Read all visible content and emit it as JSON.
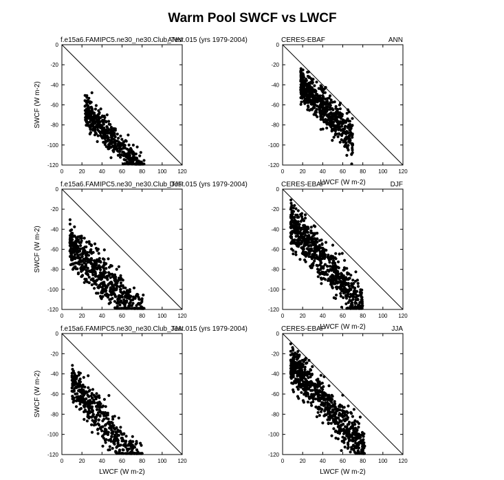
{
  "figure": {
    "title": "Warm Pool SWCF vs LWCF"
  },
  "chart_data": [
    {
      "type": "scatter",
      "panel": 1,
      "title_left": "f.e15a6.FAMIPC5.ne30_ne30.Club_Test.015 (yrs 1979-2004)",
      "title_right": "ANN",
      "xlabel": "",
      "ylabel": "SWCF (W m-2)",
      "xlim": [
        0,
        120
      ],
      "ylim": [
        -120,
        0
      ],
      "xticks": [
        "0",
        "20",
        "40",
        "60",
        "80",
        "100",
        "120"
      ],
      "yticks": [
        "0",
        "-20",
        "-40",
        "-60",
        "-80",
        "-100",
        "-120"
      ],
      "reference_line": [
        [
          0,
          0
        ],
        [
          120,
          -120
        ]
      ],
      "cloud": {
        "seed": 11,
        "n": 480,
        "x": [
          23,
          82
        ],
        "a": -32,
        "b": -1.07,
        "band": 16,
        "spread": 6
      }
    },
    {
      "type": "scatter",
      "panel": 2,
      "title_left": "CERES-EBAF",
      "title_right": "ANN",
      "xlabel": "LWCF (W m-2)",
      "ylabel": "",
      "xlim": [
        0,
        120
      ],
      "ylim": [
        -120,
        0
      ],
      "xticks": [
        "0",
        "20",
        "40",
        "60",
        "80",
        "100",
        "120"
      ],
      "yticks": [
        "0",
        "-20",
        "-40",
        "-60",
        "-80",
        "-100",
        "-120"
      ],
      "reference_line": [
        [
          0,
          0
        ],
        [
          120,
          -120
        ]
      ],
      "cloud": {
        "seed": 23,
        "n": 600,
        "x": [
          18,
          70
        ],
        "a": -12,
        "b": -1.07,
        "band": 14,
        "spread": 8
      }
    },
    {
      "type": "scatter",
      "panel": 3,
      "title_left": "f.e15a6.FAMIPC5.ne30_ne30.Club_Test.015 (yrs 1979-2004)",
      "title_right": "DJF",
      "xlabel": "",
      "ylabel": "SWCF (W m-2)",
      "xlim": [
        0,
        120
      ],
      "ylim": [
        -120,
        0
      ],
      "xticks": [
        "0",
        "20",
        "40",
        "60",
        "80",
        "100",
        "120"
      ],
      "yticks": [
        "0",
        "-20",
        "-40",
        "-60",
        "-80",
        "-100",
        "-120"
      ],
      "reference_line": [
        [
          0,
          0
        ],
        [
          120,
          -120
        ]
      ],
      "cloud": {
        "seed": 37,
        "n": 620,
        "x": [
          8,
          82
        ],
        "a": -33,
        "b": -0.98,
        "band": 30,
        "spread": 6
      }
    },
    {
      "type": "scatter",
      "panel": 4,
      "title_left": "CERES-EBAF",
      "title_right": "DJF",
      "xlabel": "LWCF (W m-2)",
      "ylabel": "",
      "xlim": [
        0,
        120
      ],
      "ylim": [
        -120,
        0
      ],
      "xticks": [
        "0",
        "20",
        "40",
        "60",
        "80",
        "100",
        "120"
      ],
      "yticks": [
        "0",
        "-20",
        "-40",
        "-60",
        "-80",
        "-100",
        "-120"
      ],
      "reference_line": [
        [
          0,
          0
        ],
        [
          120,
          -120
        ]
      ],
      "cloud": {
        "seed": 41,
        "n": 700,
        "x": [
          8,
          80
        ],
        "a": -10,
        "b": -1.2,
        "band": 26,
        "spread": 8
      }
    },
    {
      "type": "scatter",
      "panel": 5,
      "title_left": "f.e15a6.FAMIPC5.ne30_ne30.Club_Test.015 (yrs 1979-2004)",
      "title_right": "JJA",
      "xlabel": "LWCF (W m-2)",
      "ylabel": "SWCF (W m-2)",
      "xlim": [
        0,
        120
      ],
      "ylim": [
        -120,
        0
      ],
      "xticks": [
        "0",
        "20",
        "40",
        "60",
        "80",
        "100",
        "120"
      ],
      "yticks": [
        "0",
        "-20",
        "-40",
        "-60",
        "-80",
        "-100",
        "-120"
      ],
      "reference_line": [
        [
          0,
          0
        ],
        [
          120,
          -120
        ]
      ],
      "cloud": {
        "seed": 53,
        "n": 480,
        "x": [
          10,
          80
        ],
        "a": -24,
        "b": -1.22,
        "band": 24,
        "spread": 7
      }
    },
    {
      "type": "scatter",
      "panel": 6,
      "title_left": "CERES-EBAF",
      "title_right": "JJA",
      "xlabel": "LWCF (W m-2)",
      "ylabel": "",
      "xlim": [
        0,
        120
      ],
      "ylim": [
        -120,
        0
      ],
      "xticks": [
        "0",
        "20",
        "40",
        "60",
        "80",
        "100",
        "120"
      ],
      "yticks": [
        "0",
        "-20",
        "-40",
        "-60",
        "-80",
        "-100",
        "-120"
      ],
      "reference_line": [
        [
          0,
          0
        ],
        [
          120,
          -120
        ]
      ],
      "cloud": {
        "seed": 67,
        "n": 700,
        "x": [
          8,
          82
        ],
        "a": -8,
        "b": -1.15,
        "band": 24,
        "spread": 7
      }
    }
  ]
}
